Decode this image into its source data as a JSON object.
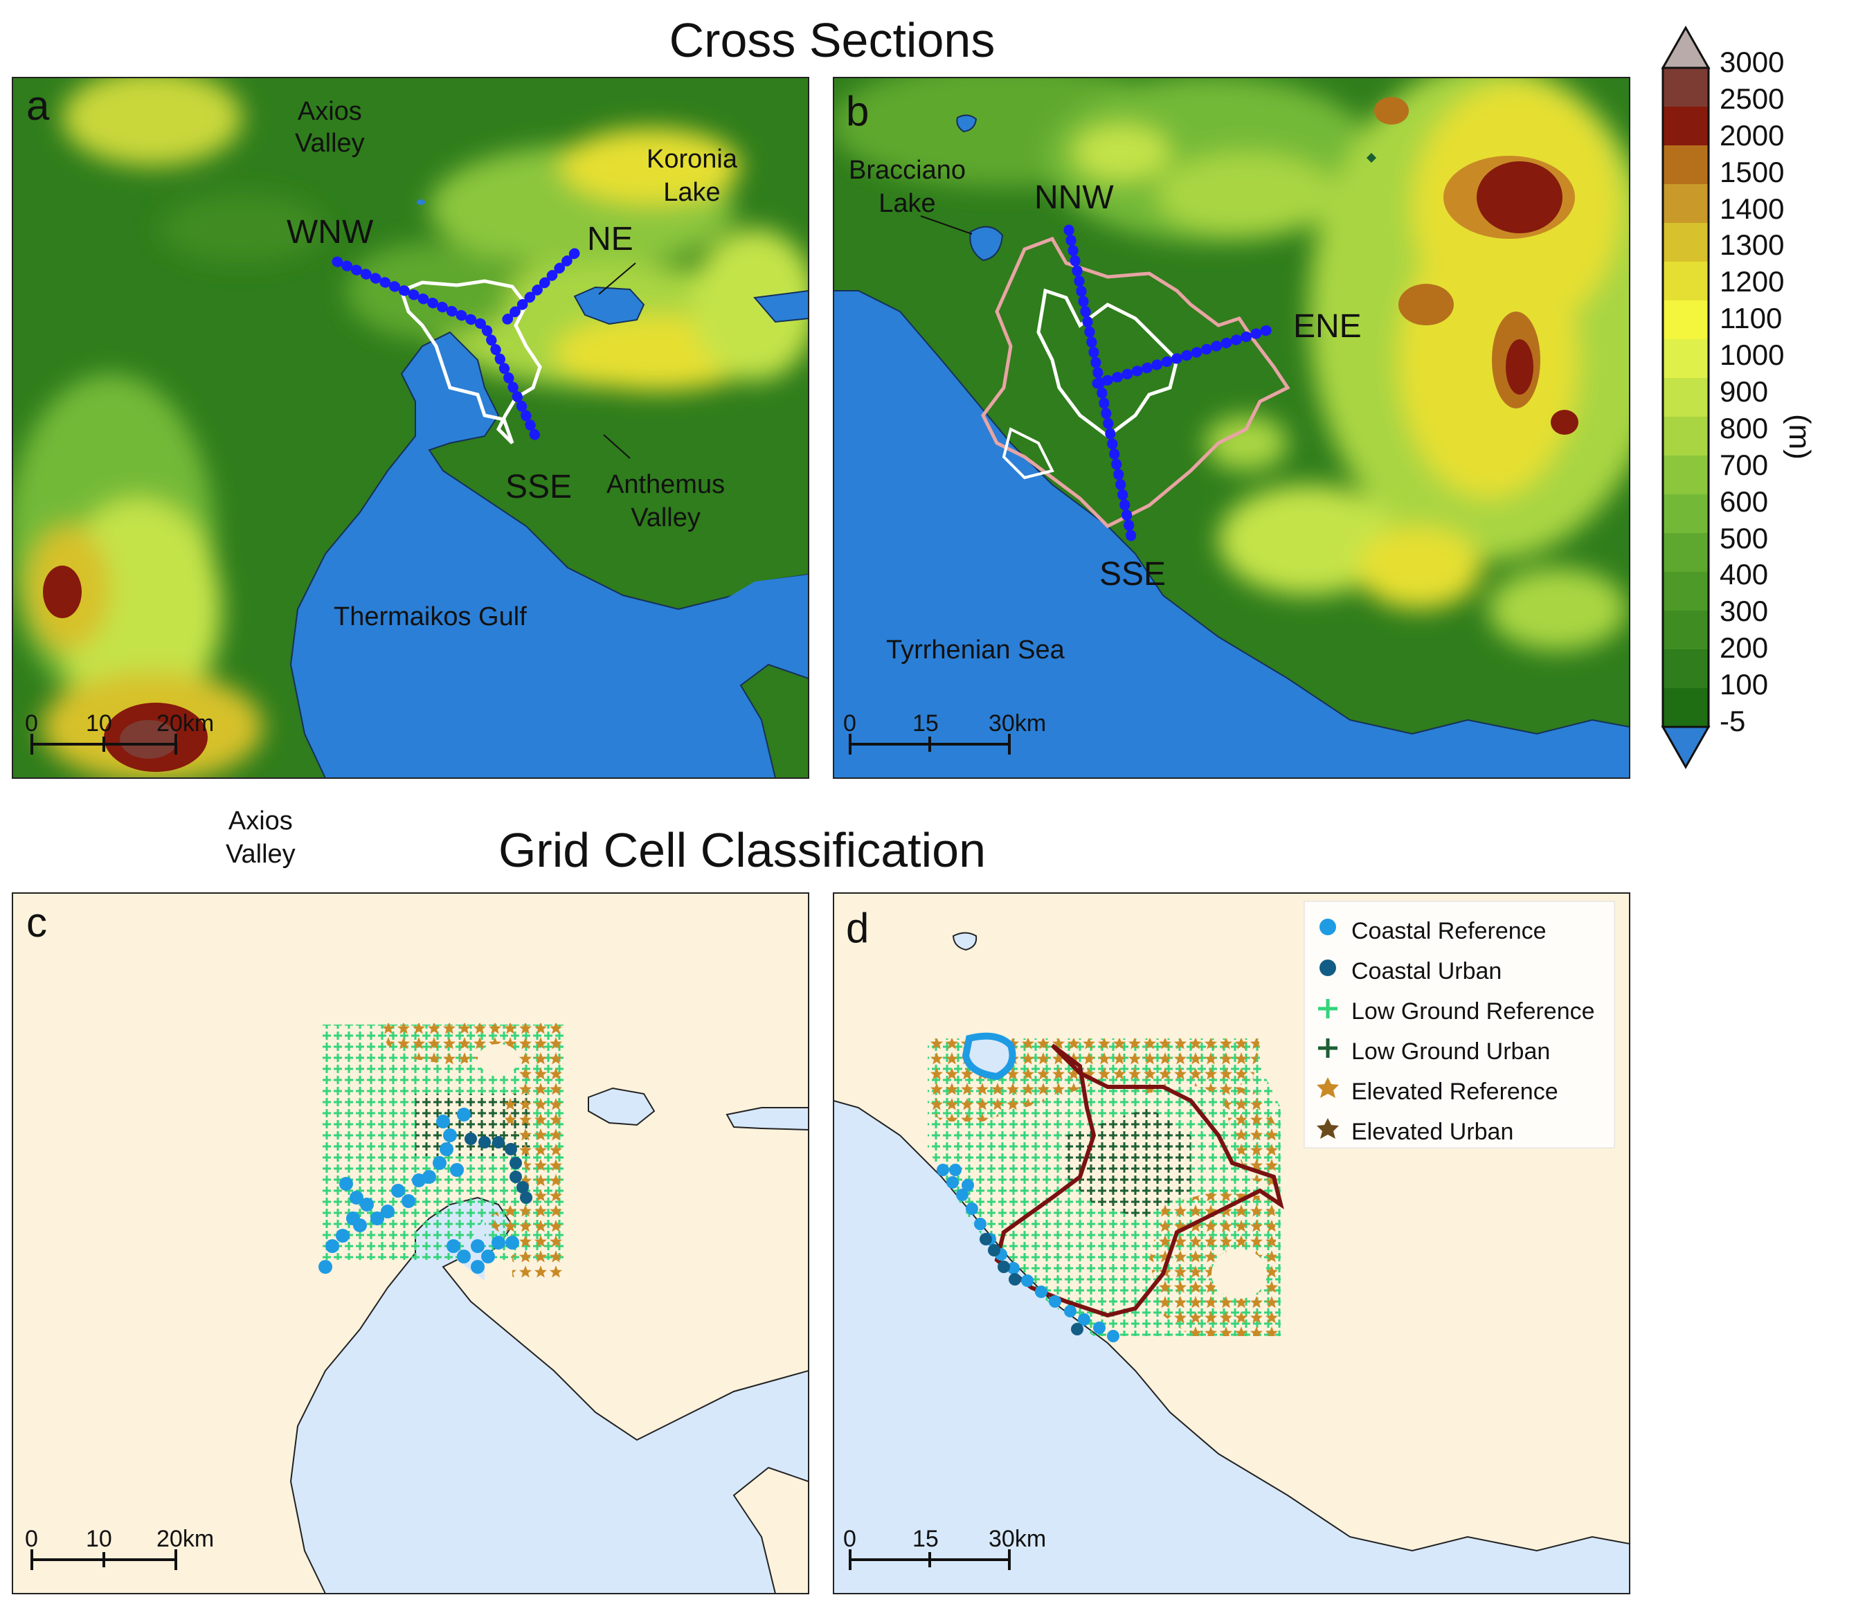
{
  "titles": {
    "top": "Cross Sections",
    "bottom": "Grid Cell Classification"
  },
  "panels": {
    "a": {
      "letter": "a",
      "labels": {
        "axios": [
          "Axios",
          "Valley"
        ],
        "koronia": [
          "Koronia",
          "Lake"
        ],
        "anthemus": [
          "Anthemus",
          "Valley"
        ],
        "gulf": "Thermaikos Gulf",
        "wnw": "WNW",
        "ne": "NE",
        "sse": "SSE"
      },
      "scale": {
        "ticks": [
          "0",
          "10",
          "20km"
        ]
      }
    },
    "b": {
      "letter": "b",
      "labels": {
        "bracciano": [
          "Bracciano",
          "Lake"
        ],
        "sea": "Tyrrhenian Sea",
        "nnw": "NNW",
        "ene": "ENE",
        "sse": "SSE"
      },
      "scale": {
        "ticks": [
          "0",
          "15",
          "30km"
        ]
      }
    },
    "c": {
      "letter": "c",
      "scale": {
        "ticks": [
          "0",
          "10",
          "20km"
        ]
      }
    },
    "d": {
      "letter": "d",
      "scale": {
        "ticks": [
          "0",
          "15",
          "30km"
        ]
      }
    }
  },
  "stray_label": [
    "Axios",
    "Valley"
  ],
  "colorbar": {
    "unit": "(m)",
    "ticks": [
      "3000",
      "2500",
      "2000",
      "1500",
      "1400",
      "1300",
      "1200",
      "1100",
      "1000",
      "900",
      "800",
      "700",
      "600",
      "500",
      "400",
      "300",
      "200",
      "100",
      "-5"
    ],
    "colors": [
      "#b9aba9",
      "#7c3c33",
      "#861a0c",
      "#b6701c",
      "#c99a2a",
      "#d7c12c",
      "#e6df33",
      "#f4f53d",
      "#dff04a",
      "#c4e348",
      "#a9d542",
      "#8cc63d",
      "#73b937",
      "#5ea82f",
      "#4d9a28",
      "#3f8c22",
      "#2f7d1c",
      "#1f6e14",
      "#2f7fd4"
    ]
  },
  "legend": {
    "items": [
      {
        "label": "Coastal Reference",
        "symbol": "dot",
        "color": "#1e9be3"
      },
      {
        "label": "Coastal Urban",
        "symbol": "dot",
        "color": "#125d86"
      },
      {
        "label": "Low Ground Reference",
        "symbol": "plus",
        "color": "#33d47a"
      },
      {
        "label": "Low Ground Urban",
        "symbol": "plus",
        "color": "#1c5e33"
      },
      {
        "label": "Elevated Reference",
        "symbol": "star",
        "color": "#c98a26"
      },
      {
        "label": "Elevated Urban",
        "symbol": "star",
        "color": "#6b4a1e"
      }
    ]
  },
  "colors": {
    "sea": "#2b7fd6",
    "land": "#2f7d1c",
    "c_land": "#fdf2dc",
    "c_sea": "#d7e8fb",
    "transect": "#1a1aff",
    "urban_outline": "#7a1111"
  }
}
